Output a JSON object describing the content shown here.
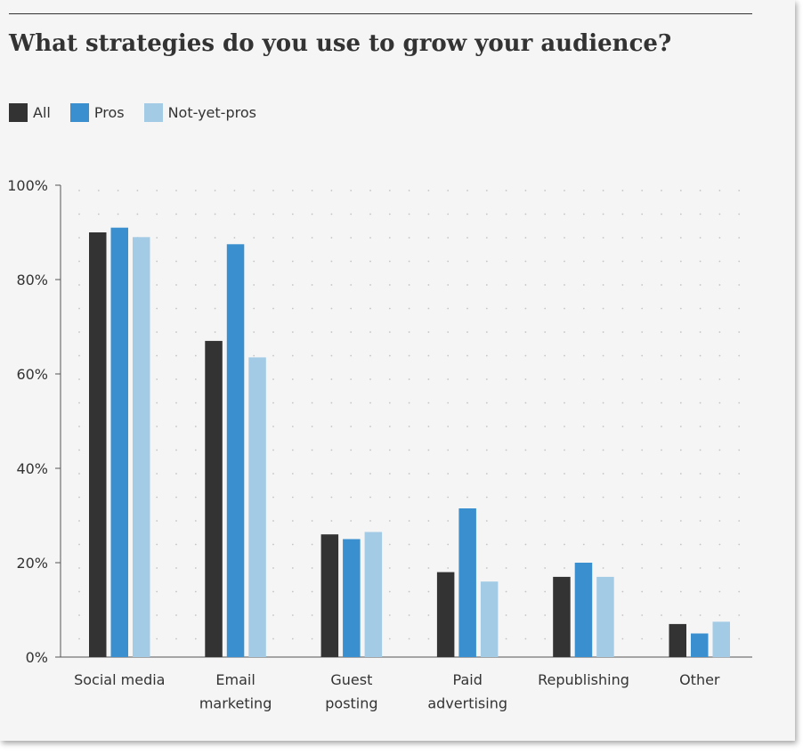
{
  "chart_data": {
    "type": "bar",
    "title": "What strategies do you use to grow your audience?",
    "categories": [
      [
        "Social media"
      ],
      [
        "Email",
        "marketing"
      ],
      [
        "Guest",
        "posting"
      ],
      [
        "Paid",
        "advertising"
      ],
      [
        "Republishing"
      ],
      [
        "Other"
      ]
    ],
    "series": [
      {
        "name": "All",
        "color": "#333333",
        "values": [
          90,
          67,
          26,
          18,
          17,
          7
        ]
      },
      {
        "name": "Pros",
        "color": "#3a8fcf",
        "values": [
          91,
          87.5,
          25,
          31.5,
          20,
          5
        ]
      },
      {
        "name": "Not-yet-pros",
        "color": "#a3cbe6",
        "values": [
          89,
          63.5,
          26.5,
          16,
          17,
          7.5
        ]
      }
    ],
    "ylim": [
      0,
      100
    ],
    "yticks": [
      "0%",
      "20%",
      "40%",
      "60%",
      "80%",
      "100%"
    ],
    "ytick_values": [
      0,
      20,
      40,
      60,
      80,
      100
    ],
    "xlabel": "",
    "ylabel": "",
    "legend_position": "top-left",
    "grid": "dotted"
  }
}
